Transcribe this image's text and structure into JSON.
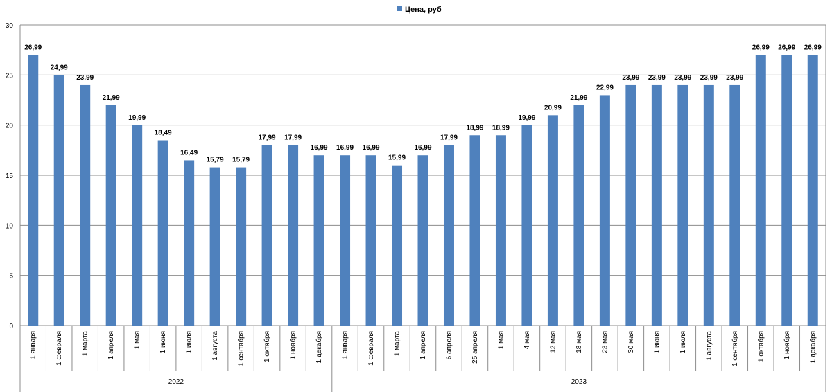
{
  "chart_data": {
    "type": "bar",
    "legend": {
      "label": "Цена, руб",
      "position": "top"
    },
    "series": [
      {
        "name": "Цена, руб",
        "color": "#4F81BD",
        "values": [
          26.99,
          24.99,
          23.99,
          21.99,
          19.99,
          18.49,
          16.49,
          15.79,
          15.79,
          17.99,
          17.99,
          16.99,
          16.99,
          16.99,
          15.99,
          16.99,
          17.99,
          18.99,
          18.99,
          19.99,
          20.99,
          21.99,
          22.99,
          23.99,
          23.99,
          23.99,
          23.99,
          23.99,
          26.99,
          26.99,
          26.99
        ],
        "labels": [
          "26,99",
          "24,99",
          "23,99",
          "21,99",
          "19,99",
          "18,49",
          "16,49",
          "15,79",
          "15,79",
          "17,99",
          "17,99",
          "16,99",
          "16,99",
          "16,99",
          "15,99",
          "16,99",
          "17,99",
          "18,99",
          "18,99",
          "19,99",
          "20,99",
          "21,99",
          "22,99",
          "23,99",
          "23,99",
          "23,99",
          "23,99",
          "23,99",
          "26,99",
          "26,99",
          "26,99"
        ]
      }
    ],
    "categories": [
      "1 января",
      "1 февраля",
      "1 марта",
      "1 апреля",
      "1 мая",
      "1 июня",
      "1 июля",
      "1 августа",
      "1 сентября",
      "1 октября",
      "1 ноября",
      "1 декабря",
      "1 января",
      "1 февраля",
      "1 марта",
      "1 апреля",
      "6 апреля",
      "25 апреля",
      "1 мая",
      "4 мая",
      "12 мая",
      "18 мая",
      "23 мая",
      "30 мая",
      "1 июня",
      "1 июля",
      "1 августа",
      "1 сентября",
      "1 октября",
      "1 ноября",
      "1 декабря"
    ],
    "groups": [
      {
        "label": "2022",
        "count": 12
      },
      {
        "label": "2023",
        "count": 19
      }
    ],
    "ylim": [
      0,
      30
    ],
    "yticks": [
      0,
      5,
      10,
      15,
      20,
      25,
      30
    ],
    "grid": true
  }
}
